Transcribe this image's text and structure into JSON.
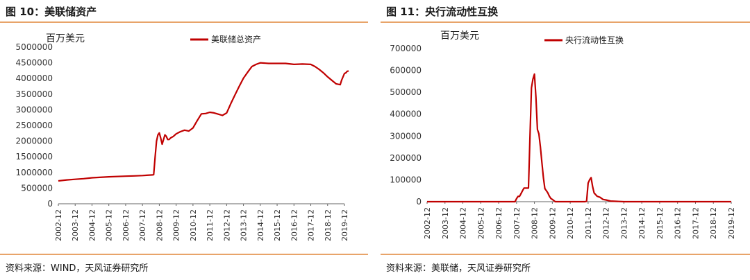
{
  "left_panel": {
    "figure_title": "图 10：美联储资产",
    "source": "资料来源：WIND，天风证券研究所"
  },
  "right_panel": {
    "figure_title": "图 11：央行流动性互换",
    "source": "资料来源：美联储，天风证券研究所"
  },
  "chart_data": [
    {
      "type": "line",
      "unit_label": "百万美元",
      "x_ticks": [
        "2002-12",
        "2003-12",
        "2004-12",
        "2005-12",
        "2006-12",
        "2007-12",
        "2008-12",
        "2009-12",
        "2010-12",
        "2011-12",
        "2012-12",
        "2013-12",
        "2014-12",
        "2015-12",
        "2016-12",
        "2017-12",
        "2018-12",
        "2019-12"
      ],
      "y_ticks": [
        0,
        500000,
        1000000,
        1500000,
        2000000,
        2500000,
        3000000,
        3500000,
        4000000,
        4500000,
        5000000
      ],
      "ylim": [
        0,
        5000000
      ],
      "xlim": [
        "2002-12",
        "2019-12"
      ],
      "legend_position": "top-right",
      "series": [
        {
          "name": "美联储总资产",
          "color": "#c00000",
          "points": [
            [
              "2002-12",
              730000
            ],
            [
              "2003-06",
              760000
            ],
            [
              "2003-12",
              780000
            ],
            [
              "2004-06",
              800000
            ],
            [
              "2004-12",
              830000
            ],
            [
              "2005-12",
              860000
            ],
            [
              "2006-12",
              880000
            ],
            [
              "2007-06",
              890000
            ],
            [
              "2007-12",
              900000
            ],
            [
              "2008-03",
              910000
            ],
            [
              "2008-07",
              920000
            ],
            [
              "2008-08",
              930000
            ],
            [
              "2008-09",
              1500000
            ],
            [
              "2008-10",
              2000000
            ],
            [
              "2008-11",
              2200000
            ],
            [
              "2008-12",
              2260000
            ],
            [
              "2009-01",
              2100000
            ],
            [
              "2009-02",
              1900000
            ],
            [
              "2009-03",
              2050000
            ],
            [
              "2009-04",
              2200000
            ],
            [
              "2009-05",
              2150000
            ],
            [
              "2009-06",
              2050000
            ],
            [
              "2009-07",
              2050000
            ],
            [
              "2009-08",
              2100000
            ],
            [
              "2009-10",
              2150000
            ],
            [
              "2009-12",
              2230000
            ],
            [
              "2010-03",
              2300000
            ],
            [
              "2010-06",
              2350000
            ],
            [
              "2010-09",
              2320000
            ],
            [
              "2010-12",
              2420000
            ],
            [
              "2011-03",
              2650000
            ],
            [
              "2011-06",
              2870000
            ],
            [
              "2011-09",
              2880000
            ],
            [
              "2011-12",
              2920000
            ],
            [
              "2012-03",
              2900000
            ],
            [
              "2012-06",
              2860000
            ],
            [
              "2012-09",
              2820000
            ],
            [
              "2012-12",
              2900000
            ],
            [
              "2013-03",
              3200000
            ],
            [
              "2013-06",
              3480000
            ],
            [
              "2013-09",
              3750000
            ],
            [
              "2013-12",
              4010000
            ],
            [
              "2014-03",
              4200000
            ],
            [
              "2014-06",
              4380000
            ],
            [
              "2014-09",
              4450000
            ],
            [
              "2014-12",
              4500000
            ],
            [
              "2015-06",
              4480000
            ],
            [
              "2015-12",
              4480000
            ],
            [
              "2016-06",
              4480000
            ],
            [
              "2016-12",
              4450000
            ],
            [
              "2017-06",
              4460000
            ],
            [
              "2017-12",
              4450000
            ],
            [
              "2018-03",
              4380000
            ],
            [
              "2018-06",
              4290000
            ],
            [
              "2018-09",
              4180000
            ],
            [
              "2018-12",
              4050000
            ],
            [
              "2019-03",
              3940000
            ],
            [
              "2019-06",
              3830000
            ],
            [
              "2019-09",
              3800000
            ],
            [
              "2019-10",
              3950000
            ],
            [
              "2019-12",
              4160000
            ],
            [
              "2020-01",
              4180000
            ],
            [
              "2020-02",
              4230000
            ],
            [
              "2020-03",
              4240000
            ]
          ]
        }
      ]
    },
    {
      "type": "line",
      "unit_label": "百万美元",
      "x_ticks": [
        "2002-12",
        "2003-12",
        "2004-12",
        "2005-12",
        "2006-12",
        "2007-12",
        "2008-12",
        "2009-12",
        "2010-12",
        "2011-12",
        "2012-12",
        "2013-12",
        "2014-12",
        "2015-12",
        "2016-12",
        "2017-12",
        "2018-12",
        "2019-12"
      ],
      "y_ticks": [
        0,
        100000,
        200000,
        300000,
        400000,
        500000,
        600000,
        700000
      ],
      "ylim": [
        0,
        700000
      ],
      "xlim": [
        "2002-12",
        "2019-12"
      ],
      "legend_position": "top-right",
      "series": [
        {
          "name": "央行流动性互换",
          "color": "#c00000",
          "points": [
            [
              "2002-12",
              0
            ],
            [
              "2007-11",
              0
            ],
            [
              "2007-12",
              14000
            ],
            [
              "2008-01",
              24000
            ],
            [
              "2008-02",
              24000
            ],
            [
              "2008-03",
              37000
            ],
            [
              "2008-04",
              50000
            ],
            [
              "2008-05",
              62000
            ],
            [
              "2008-06",
              62000
            ],
            [
              "2008-08",
              62000
            ],
            [
              "2008-09",
              290000
            ],
            [
              "2008-10",
              520000
            ],
            [
              "2008-11",
              560000
            ],
            [
              "2008-12",
              583000
            ],
            [
              "2009-01",
              480000
            ],
            [
              "2009-02",
              330000
            ],
            [
              "2009-03",
              310000
            ],
            [
              "2009-04",
              250000
            ],
            [
              "2009-05",
              180000
            ],
            [
              "2009-06",
              110000
            ],
            [
              "2009-07",
              60000
            ],
            [
              "2009-08",
              50000
            ],
            [
              "2009-09",
              40000
            ],
            [
              "2009-10",
              25000
            ],
            [
              "2009-11",
              15000
            ],
            [
              "2009-12",
              10000
            ],
            [
              "2010-02",
              0
            ],
            [
              "2011-10",
              0
            ],
            [
              "2011-11",
              2000
            ],
            [
              "2011-12",
              85000
            ],
            [
              "2012-01",
              100000
            ],
            [
              "2012-02",
              110000
            ],
            [
              "2012-03",
              70000
            ],
            [
              "2012-04",
              40000
            ],
            [
              "2012-06",
              25000
            ],
            [
              "2012-08",
              20000
            ],
            [
              "2012-10",
              10000
            ],
            [
              "2012-12",
              8000
            ],
            [
              "2013-03",
              3000
            ],
            [
              "2013-12",
              0
            ],
            [
              "2019-12",
              0
            ]
          ]
        }
      ]
    }
  ]
}
